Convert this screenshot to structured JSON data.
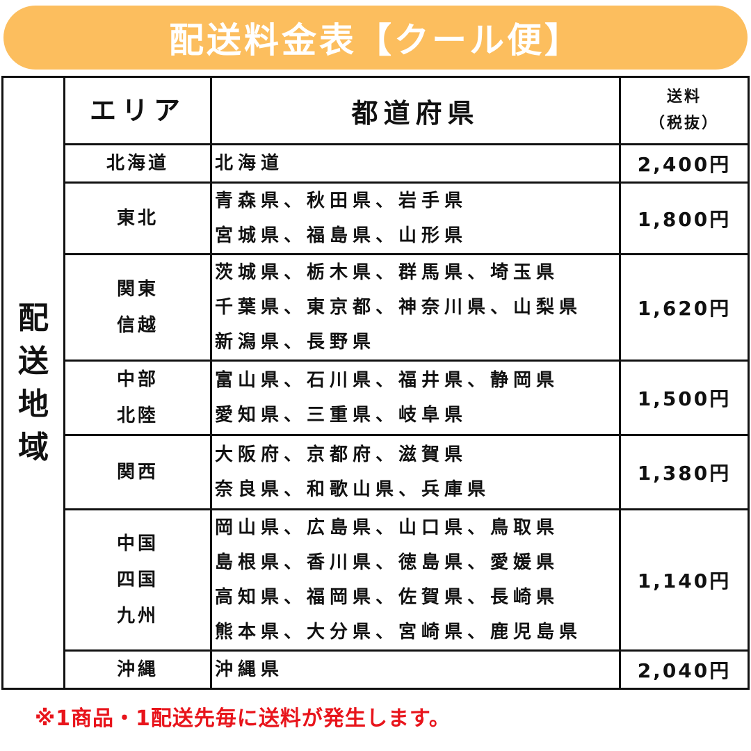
{
  "title": "配送料金表【クール便】",
  "side_label": [
    "配",
    "送",
    "地",
    "域"
  ],
  "header": {
    "area": "エリア",
    "prefecture": "都道府県",
    "fee_line1": "送料",
    "fee_line2": "（税抜）"
  },
  "rows": [
    {
      "area": [
        "北海道"
      ],
      "prefectures": [
        "北海道"
      ],
      "price": "2,400円"
    },
    {
      "area": [
        "東北"
      ],
      "prefectures": [
        "青森県、秋田県、岩手県",
        "宮城県、福島県、山形県"
      ],
      "price": "1,800円"
    },
    {
      "area": [
        "関東",
        "信越"
      ],
      "prefectures": [
        "茨城県、栃木県、群馬県、埼玉県",
        "千葉県、東京都、神奈川県、山梨県",
        "新潟県、長野県"
      ],
      "price": "1,620円"
    },
    {
      "area": [
        "中部",
        "北陸"
      ],
      "prefectures": [
        "富山県、石川県、福井県、静岡県",
        "愛知県、三重県、岐阜県"
      ],
      "price": "1,500円"
    },
    {
      "area": [
        "関西"
      ],
      "prefectures": [
        "大阪府、京都府、滋賀県",
        "奈良県、和歌山県、兵庫県"
      ],
      "price": "1,380円"
    },
    {
      "area": [
        "中国",
        "四国",
        "九州"
      ],
      "prefectures": [
        "岡山県、広島県、山口県、鳥取県",
        "島根県、香川県、徳島県、愛媛県",
        "高知県、福岡県、佐賀県、長崎県",
        "熊本県、大分県、宮崎県、鹿児島県"
      ],
      "price": "1,140円"
    },
    {
      "area": [
        "沖縄"
      ],
      "prefectures": [
        "沖縄県"
      ],
      "price": "2,040円"
    }
  ],
  "note": "※1商品・1配送先毎に送料が発生します。",
  "colors": {
    "title_bg": "#fcbe5e",
    "note": "#e8141b"
  }
}
